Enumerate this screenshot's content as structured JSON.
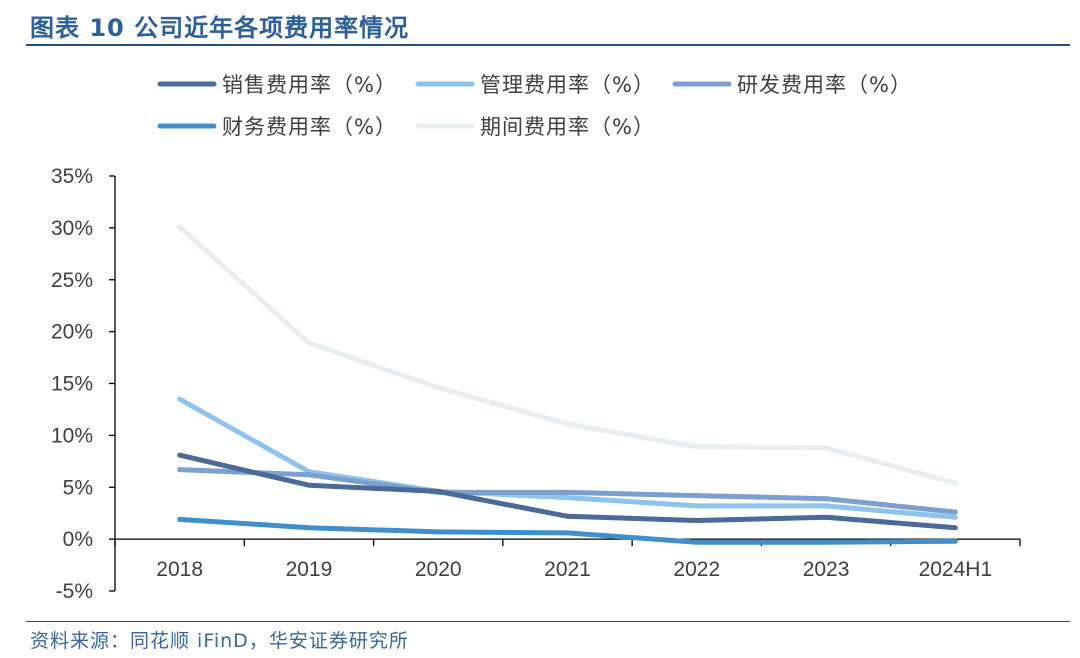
{
  "title": "图表 10 公司近年各项费用率情况",
  "source": "资料来源：同花顺 iFinD，华安证券研究所",
  "chart_data": {
    "type": "line",
    "title": "图表 10 公司近年各项费用率情况",
    "xlabel": "",
    "ylabel": "",
    "categories": [
      "2018",
      "2019",
      "2020",
      "2021",
      "2022",
      "2023",
      "2024H1"
    ],
    "ylim": [
      -5,
      35
    ],
    "yticks": [
      -5,
      0,
      5,
      10,
      15,
      20,
      25,
      30,
      35
    ],
    "ytick_labels": [
      "-5%",
      "0%",
      "5%",
      "10%",
      "15%",
      "20%",
      "25%",
      "30%",
      "35%"
    ],
    "grid": false,
    "legend_position": "top",
    "series": [
      {
        "name": "销售费用率（%）",
        "color": "#4a6a9a",
        "values": [
          8.1,
          5.2,
          4.6,
          2.2,
          1.8,
          2.1,
          1.1
        ]
      },
      {
        "name": "管理费用率（%）",
        "color": "#8ec3ec",
        "values": [
          13.5,
          6.5,
          4.6,
          4.0,
          3.2,
          3.2,
          2.1
        ]
      },
      {
        "name": "研发费用率（%）",
        "color": "#7b9fd0",
        "values": [
          6.7,
          6.2,
          4.5,
          4.5,
          4.2,
          3.9,
          2.6
        ]
      },
      {
        "name": "财务费用率（%）",
        "color": "#3f8fcc",
        "values": [
          1.9,
          1.1,
          0.7,
          0.6,
          -0.3,
          -0.3,
          -0.2
        ]
      },
      {
        "name": "期间费用率（%）",
        "color": "#e8eef2",
        "values": [
          30.1,
          18.9,
          14.6,
          11.1,
          8.9,
          8.8,
          5.4
        ]
      }
    ]
  }
}
